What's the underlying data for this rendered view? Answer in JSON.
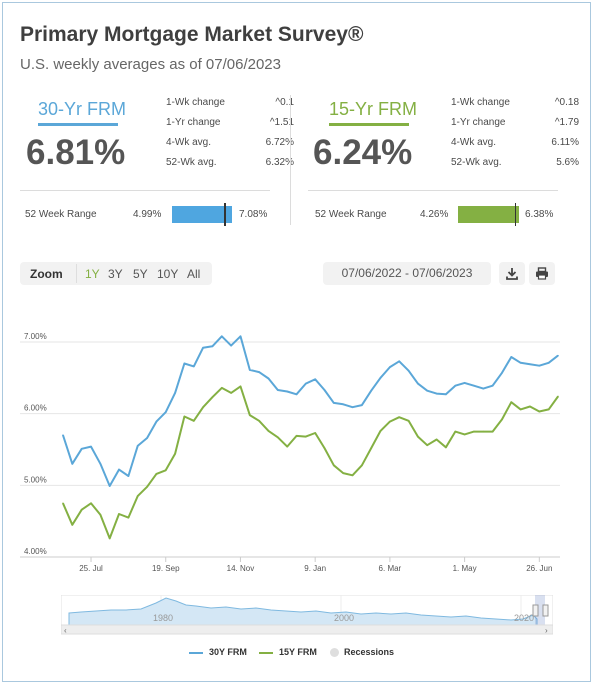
{
  "header": {
    "title": "Primary Mortgage Market Survey®",
    "subtitle": "U.S. weekly averages as of 07/06/2023"
  },
  "rates": [
    {
      "name": "30-Yr FRM",
      "value": "6.81%",
      "color": "#5ba7d8",
      "stats": [
        {
          "label": "1-Wk change",
          "value": "^0.1"
        },
        {
          "label": "1-Yr change",
          "value": "^1.51"
        },
        {
          "label": "4-Wk avg.",
          "value": "6.72%"
        },
        {
          "label": "52-Wk avg.",
          "value": "6.32%"
        }
      ],
      "range": {
        "label": "52 Week Range",
        "low": "4.99%",
        "high": "7.08%",
        "color": "#4fa6e0",
        "current_fraction": 0.87
      }
    },
    {
      "name": "15-Yr FRM",
      "value": "6.24%",
      "color": "#84b043",
      "stats": [
        {
          "label": "1-Wk change",
          "value": "^0.18"
        },
        {
          "label": "1-Yr change",
          "value": "^1.79"
        },
        {
          "label": "4-Wk avg.",
          "value": "6.11%"
        },
        {
          "label": "52-Wk avg.",
          "value": "5.6%"
        }
      ],
      "range": {
        "label": "52 Week Range",
        "low": "4.26%",
        "high": "6.38%",
        "color": "#84b043",
        "current_fraction": 0.93
      }
    }
  ],
  "toolbar": {
    "zoom_label": "Zoom",
    "zoom_options": [
      "1Y",
      "3Y",
      "5Y",
      "10Y",
      "All"
    ],
    "active_zoom": "1Y",
    "date_range": "07/06/2022 - 07/06/2023",
    "download_icon": "download-icon",
    "print_icon": "print-icon"
  },
  "navigator": {
    "labels": [
      "1980",
      "2000",
      "2020"
    ]
  },
  "legend": {
    "items": [
      "30Y FRM",
      "15Y FRM",
      "Recessions"
    ]
  },
  "chart_data": {
    "type": "line",
    "ylim": [
      4.0,
      7.6
    ],
    "yticks": [
      4.0,
      5.0,
      6.0,
      7.0
    ],
    "ytick_labels": [
      "4.00%",
      "5.00%",
      "6.00%",
      "7.00%"
    ],
    "xticks": [
      3,
      11,
      19,
      27,
      35,
      43,
      51
    ],
    "xtick_labels": [
      "25. Jul",
      "19. Sep",
      "14. Nov",
      "9. Jan",
      "6. Mar",
      "1. May",
      "26. Jun"
    ],
    "grid": true,
    "series": [
      {
        "name": "30Y FRM",
        "color": "#5ba7d8",
        "values": [
          5.7,
          5.3,
          5.51,
          5.54,
          5.3,
          4.99,
          5.22,
          5.13,
          5.55,
          5.66,
          5.89,
          6.02,
          6.29,
          6.7,
          6.66,
          6.92,
          6.94,
          7.08,
          6.95,
          7.08,
          6.61,
          6.58,
          6.49,
          6.33,
          6.31,
          6.27,
          6.42,
          6.48,
          6.33,
          6.15,
          6.13,
          6.09,
          6.12,
          6.32,
          6.5,
          6.65,
          6.73,
          6.6,
          6.42,
          6.32,
          6.28,
          6.27,
          6.39,
          6.43,
          6.39,
          6.35,
          6.39,
          6.57,
          6.79,
          6.71,
          6.69,
          6.67,
          6.71,
          6.81
        ]
      },
      {
        "name": "15Y FRM",
        "color": "#84b043",
        "values": [
          4.75,
          4.45,
          4.66,
          4.75,
          4.59,
          4.26,
          4.6,
          4.55,
          4.85,
          4.98,
          5.16,
          5.21,
          5.44,
          5.96,
          5.9,
          6.09,
          6.23,
          6.36,
          6.29,
          6.38,
          5.98,
          5.9,
          5.76,
          5.67,
          5.54,
          5.69,
          5.68,
          5.73,
          5.52,
          5.28,
          5.17,
          5.14,
          5.28,
          5.52,
          5.76,
          5.89,
          5.95,
          5.9,
          5.68,
          5.56,
          5.64,
          5.53,
          5.75,
          5.71,
          5.75,
          5.75,
          5.75,
          5.92,
          6.16,
          6.06,
          6.1,
          6.03,
          6.06,
          6.24
        ]
      }
    ]
  }
}
